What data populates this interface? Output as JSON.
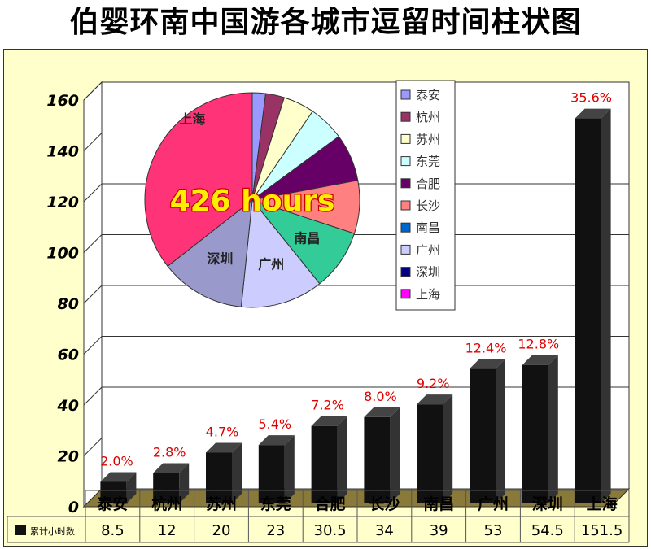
{
  "title": "伯婴环南中国游各城市逗留时间柱状图",
  "colors": {
    "bar": "#111111",
    "wall": "#ffffff",
    "floor": "#8a7a3a",
    "frame_bg": "#ffffcc",
    "percent_label": "#dd0000"
  },
  "chart_data": {
    "type": "bar",
    "categories": [
      "泰安",
      "杭州",
      "苏州",
      "东莞",
      "合肥",
      "长沙",
      "南昌",
      "广州",
      "深圳",
      "上海"
    ],
    "series": [
      {
        "name": "累计小时数",
        "values": [
          8.5,
          12,
          20,
          23,
          30.5,
          34,
          39,
          53,
          54.5,
          151.5
        ],
        "value_labels": [
          "8.5",
          "12",
          "20",
          "23",
          "30.5",
          "34",
          "39",
          "53",
          "54.5",
          "151.5"
        ]
      }
    ],
    "percent_labels": [
      "2.0%",
      "2.8%",
      "4.7%",
      "5.4%",
      "7.2%",
      "8.0%",
      "9.2%",
      "12.4%",
      "12.8%",
      "35.6%"
    ],
    "yticks": [
      "0",
      "20",
      "40",
      "60",
      "80",
      "100",
      "120",
      "140",
      "160"
    ],
    "ylim": [
      0,
      160
    ],
    "grid": true,
    "legend": {
      "placement": "top-center",
      "entries": [
        {
          "label": "泰安",
          "color": "#9999ff"
        },
        {
          "label": "杭州",
          "color": "#993366"
        },
        {
          "label": "苏州",
          "color": "#ffffcc"
        },
        {
          "label": "东莞",
          "color": "#ccffff"
        },
        {
          "label": "合肥",
          "color": "#660066"
        },
        {
          "label": "长沙",
          "color": "#ff8080"
        },
        {
          "label": "南昌",
          "color": "#0066cc"
        },
        {
          "label": "广州",
          "color": "#ccccff"
        },
        {
          "label": "深圳",
          "color": "#000080"
        },
        {
          "label": "上海",
          "color": "#ff00ff"
        }
      ]
    },
    "pie": {
      "slices": [
        {
          "label": "泰安",
          "value": 8.5,
          "color": "#9999ff"
        },
        {
          "label": "杭州",
          "value": 12,
          "color": "#993366"
        },
        {
          "label": "苏州",
          "value": 20,
          "color": "#ffffcc"
        },
        {
          "label": "东莞",
          "value": 23,
          "color": "#ccffff"
        },
        {
          "label": "合肥",
          "value": 30.5,
          "color": "#660066"
        },
        {
          "label": "长沙",
          "value": 34,
          "color": "#ff8080"
        },
        {
          "label": "南昌",
          "value": 39,
          "color": "#33cc99"
        },
        {
          "label": "广州",
          "value": 53,
          "color": "#ccccff"
        },
        {
          "label": "深圳",
          "value": 54.5,
          "color": "#9999cc"
        },
        {
          "label": "上海",
          "value": 151.5,
          "color": "#ff3377"
        }
      ],
      "slice_labels": [
        "南昌",
        "广州",
        "深圳",
        "上海"
      ],
      "annotation": "426 hours"
    }
  }
}
